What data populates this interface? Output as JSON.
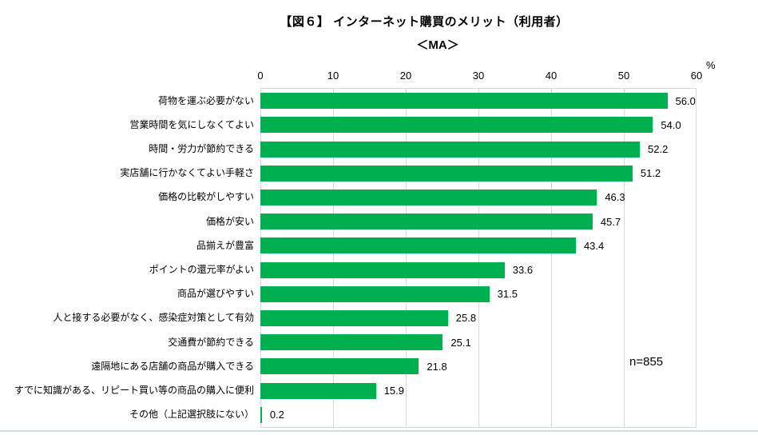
{
  "title": "【図６】 インターネット購買のメリット（利用者）",
  "subtitle": "＜MA＞",
  "percent_label": "%",
  "sample_label": "n=855",
  "colors": {
    "bar": "#00B050",
    "gridline": "#D9D9D9",
    "text": "#000000",
    "bottom_rule": "#CFDDE9"
  },
  "chart_data": {
    "type": "bar",
    "orientation": "horizontal",
    "title": "【図６】 インターネット購買のメリット（利用者）",
    "subtitle": "＜MA＞",
    "unit": "%",
    "sample_size": 855,
    "grid": true,
    "legend": false,
    "xlim": [
      0,
      60
    ],
    "xticks": [
      0,
      10,
      20,
      30,
      40,
      50,
      60
    ],
    "categories": [
      "荷物を運ぶ必要がない",
      "営業時間を気にしなくてよい",
      "時間・労力が節約できる",
      "実店舗に行かなくてよい手軽さ",
      "価格の比較がしやすい",
      "価格が安い",
      "品揃えが豊富",
      "ポイントの還元率がよい",
      "商品が選びやすい",
      "人と接する必要がなく、感染症対策として有効",
      "交通費が節約できる",
      "遠隔地にある店舗の商品が購入できる",
      "すでに知識がある、リピート買い等の商品の購入に便利",
      "その他（上記選択肢にない）"
    ],
    "values": [
      56.0,
      54.0,
      52.2,
      51.2,
      46.3,
      45.7,
      43.4,
      33.6,
      31.5,
      25.8,
      25.1,
      21.8,
      15.9,
      0.2
    ],
    "value_labels": [
      "56.0",
      "54.0",
      "52.2",
      "51.2",
      "46.3",
      "45.7",
      "43.4",
      "33.6",
      "31.5",
      "25.8",
      "25.1",
      "21.8",
      "15.9",
      "0.2"
    ]
  }
}
